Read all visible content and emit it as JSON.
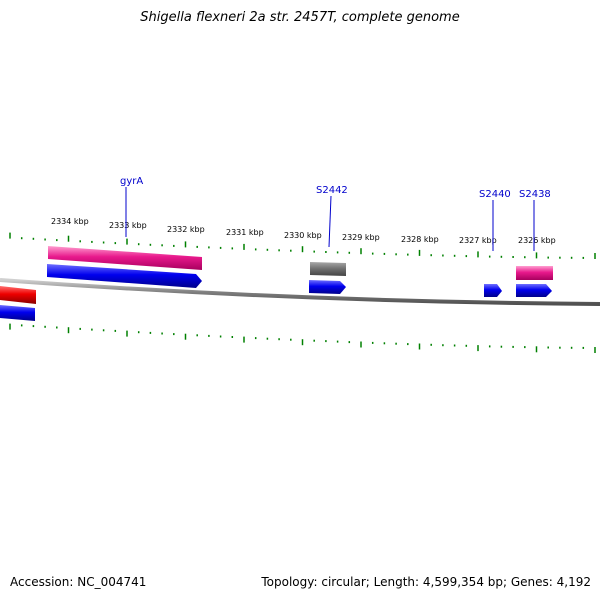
{
  "title": "Shigella flexneri 2a str. 2457T, complete genome",
  "ruler": {
    "labels": [
      "2334 kbp",
      "2333 kbp",
      "2332 kbp",
      "2331 kbp",
      "2330 kbp",
      "2329 kbp",
      "2328 kbp",
      "2327 kbp",
      "2326 kbp"
    ]
  },
  "gene_labels": {
    "gyrA": "gyrA",
    "S2442": "S2442",
    "S2440": "S2440",
    "S2438": "S2438"
  },
  "footer": {
    "accession": "Accession: NC_004741",
    "summary": "Topology: circular; Length: 4,599,354 bp; Genes: 4,192"
  },
  "colors": {
    "backbone": "#808080",
    "tick": "#008000",
    "feature_pink": "#e8198c",
    "feature_blue": "#0000ee",
    "feature_red": "#ee0000",
    "feature_gray": "#6e6e6e",
    "label": "#0000cc"
  }
}
